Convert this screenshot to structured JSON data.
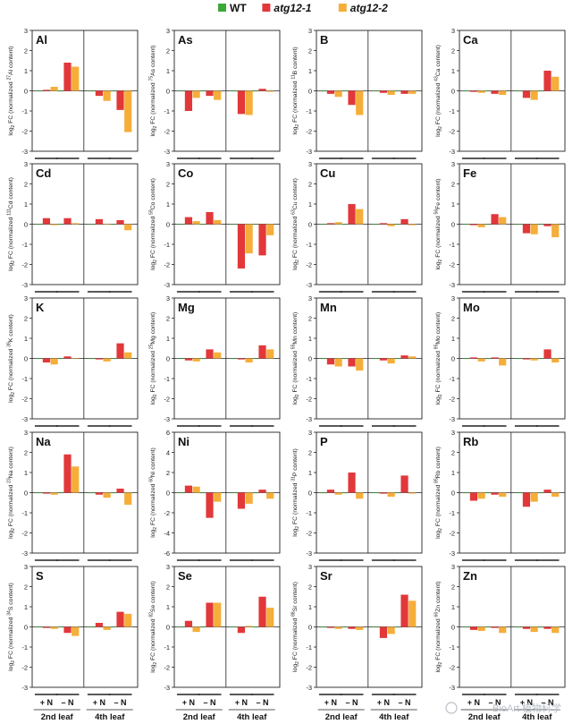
{
  "legend": {
    "entries": [
      {
        "label": "WT",
        "color": "#3aa935",
        "italic": false
      },
      {
        "label": "atg12-1",
        "color": "#e2383a",
        "italic": true
      },
      {
        "label": "atg12-2",
        "color": "#f5ae3a",
        "italic": true
      }
    ]
  },
  "axis": {
    "ylabel_prefix": "log",
    "ylabel_sub": "2",
    "ylabel_fc": " FC (normalized "
  },
  "groups": {
    "treatments": [
      "+ N",
      "– N"
    ],
    "leaves": [
      "2nd leaf",
      "4th leaf"
    ]
  },
  "watermark": "BioArt 植物科学",
  "chart_data": [
    {
      "type": "bar",
      "title": "Al",
      "isotope": "27",
      "isotope_el": "Al",
      "ylim": [
        -3,
        3
      ],
      "ticks": [
        -3,
        -2,
        -1,
        0,
        1,
        2,
        3
      ],
      "categories": [
        "2nd +N",
        "2nd –N",
        "4th +N",
        "4th –N"
      ],
      "series": [
        {
          "name": "WT",
          "values": [
            0,
            0,
            0,
            0
          ]
        },
        {
          "name": "atg12-1",
          "values": [
            0.05,
            1.4,
            -0.25,
            -0.95
          ]
        },
        {
          "name": "atg12-2",
          "values": [
            0.2,
            1.2,
            -0.5,
            -2.05
          ]
        }
      ]
    },
    {
      "type": "bar",
      "title": "As",
      "isotope": "75",
      "isotope_el": "As",
      "ylim": [
        -3,
        3
      ],
      "ticks": [
        -3,
        -2,
        -1,
        0,
        1,
        2,
        3
      ],
      "categories": [
        "2nd +N",
        "2nd –N",
        "4th +N",
        "4th –N"
      ],
      "series": [
        {
          "name": "WT",
          "values": [
            0,
            0,
            0,
            0
          ]
        },
        {
          "name": "atg12-1",
          "values": [
            -1.0,
            -0.25,
            -1.15,
            0.1
          ]
        },
        {
          "name": "atg12-2",
          "values": [
            -0.35,
            -0.45,
            -1.2,
            -0.05
          ]
        }
      ]
    },
    {
      "type": "bar",
      "title": "B",
      "isotope": "11",
      "isotope_el": "B",
      "ylim": [
        -3,
        3
      ],
      "ticks": [
        -3,
        -2,
        -1,
        0,
        1,
        2,
        3
      ],
      "categories": [
        "2nd +N",
        "2nd –N",
        "4th +N",
        "4th –N"
      ],
      "series": [
        {
          "name": "WT",
          "values": [
            0,
            0,
            0,
            0
          ]
        },
        {
          "name": "atg12-1",
          "values": [
            -0.15,
            -0.7,
            -0.1,
            -0.15
          ]
        },
        {
          "name": "atg12-2",
          "values": [
            -0.3,
            -1.2,
            -0.2,
            -0.15
          ]
        }
      ]
    },
    {
      "type": "bar",
      "title": "Ca",
      "isotope": "43",
      "isotope_el": "Ca",
      "ylim": [
        -3,
        3
      ],
      "ticks": [
        -3,
        -2,
        -1,
        0,
        1,
        2,
        3
      ],
      "categories": [
        "2nd +N",
        "2nd –N",
        "4th +N",
        "4th –N"
      ],
      "series": [
        {
          "name": "WT",
          "values": [
            0,
            0,
            0,
            0
          ]
        },
        {
          "name": "atg12-1",
          "values": [
            -0.05,
            -0.15,
            -0.35,
            1.0
          ]
        },
        {
          "name": "atg12-2",
          "values": [
            -0.1,
            -0.2,
            -0.45,
            0.7
          ]
        }
      ]
    },
    {
      "type": "bar",
      "title": "Cd",
      "isotope": "111",
      "isotope_el": "Cd",
      "ylim": [
        -3,
        3
      ],
      "ticks": [
        -3,
        -2,
        -1,
        0,
        1,
        2,
        3
      ],
      "categories": [
        "2nd +N",
        "2nd –N",
        "4th +N",
        "4th –N"
      ],
      "series": [
        {
          "name": "WT",
          "values": [
            0,
            0,
            0,
            0
          ]
        },
        {
          "name": "atg12-1",
          "values": [
            0.3,
            0.3,
            0.25,
            0.2
          ]
        },
        {
          "name": "atg12-2",
          "values": [
            -0.05,
            0.05,
            0.0,
            -0.3
          ]
        }
      ]
    },
    {
      "type": "bar",
      "title": "Co",
      "isotope": "59",
      "isotope_el": "Co",
      "ylim": [
        -3,
        3
      ],
      "ticks": [
        -3,
        -2,
        -1,
        0,
        1,
        2,
        3
      ],
      "categories": [
        "2nd +N",
        "2nd –N",
        "4th +N",
        "4th –N"
      ],
      "series": [
        {
          "name": "WT",
          "values": [
            0,
            0,
            0,
            0
          ]
        },
        {
          "name": "atg12-1",
          "values": [
            0.35,
            0.6,
            -2.2,
            -1.55
          ]
        },
        {
          "name": "atg12-2",
          "values": [
            0.15,
            0.2,
            -1.45,
            -0.55
          ]
        }
      ]
    },
    {
      "type": "bar",
      "title": "Cu",
      "isotope": "63",
      "isotope_el": "Cu",
      "ylim": [
        -3,
        3
      ],
      "ticks": [
        -3,
        -2,
        -1,
        0,
        1,
        2,
        3
      ],
      "categories": [
        "2nd +N",
        "2nd –N",
        "4th +N",
        "4th –N"
      ],
      "series": [
        {
          "name": "WT",
          "values": [
            0,
            0,
            0,
            0
          ]
        },
        {
          "name": "atg12-1",
          "values": [
            0.05,
            1.0,
            0.05,
            0.25
          ]
        },
        {
          "name": "atg12-2",
          "values": [
            0.1,
            0.75,
            -0.1,
            -0.05
          ]
        }
      ]
    },
    {
      "type": "bar",
      "title": "Fe",
      "isotope": "56",
      "isotope_el": "Fe",
      "ylim": [
        -3,
        3
      ],
      "ticks": [
        -3,
        -2,
        -1,
        0,
        1,
        2,
        3
      ],
      "categories": [
        "2nd +N",
        "2nd –N",
        "4th +N",
        "4th –N"
      ],
      "series": [
        {
          "name": "WT",
          "values": [
            0,
            0,
            0,
            0
          ]
        },
        {
          "name": "atg12-1",
          "values": [
            -0.05,
            0.5,
            -0.45,
            -0.1
          ]
        },
        {
          "name": "atg12-2",
          "values": [
            -0.15,
            0.35,
            -0.5,
            -0.65
          ]
        }
      ]
    },
    {
      "type": "bar",
      "title": "K",
      "isotope": "39",
      "isotope_el": "K",
      "ylim": [
        -3,
        3
      ],
      "ticks": [
        -3,
        -2,
        -1,
        0,
        1,
        2,
        3
      ],
      "categories": [
        "2nd +N",
        "2nd –N",
        "4th +N",
        "4th –N"
      ],
      "series": [
        {
          "name": "WT",
          "values": [
            0,
            0,
            0,
            0
          ]
        },
        {
          "name": "atg12-1",
          "values": [
            -0.2,
            0.1,
            -0.05,
            0.75
          ]
        },
        {
          "name": "atg12-2",
          "values": [
            -0.3,
            0.0,
            -0.15,
            0.3
          ]
        }
      ]
    },
    {
      "type": "bar",
      "title": "Mg",
      "isotope": "25",
      "isotope_el": "Mg",
      "ylim": [
        -3,
        3
      ],
      "ticks": [
        -3,
        -2,
        -1,
        0,
        1,
        2,
        3
      ],
      "categories": [
        "2nd +N",
        "2nd –N",
        "4th +N",
        "4th –N"
      ],
      "series": [
        {
          "name": "WT",
          "values": [
            0,
            0,
            0,
            0
          ]
        },
        {
          "name": "atg12-1",
          "values": [
            -0.1,
            0.45,
            -0.05,
            0.65
          ]
        },
        {
          "name": "atg12-2",
          "values": [
            -0.15,
            0.3,
            -0.2,
            0.45
          ]
        }
      ]
    },
    {
      "type": "bar",
      "title": "Mn",
      "isotope": "55",
      "isotope_el": "Mn",
      "ylim": [
        -3,
        3
      ],
      "ticks": [
        -3,
        -2,
        -1,
        0,
        1,
        2,
        3
      ],
      "categories": [
        "2nd +N",
        "2nd –N",
        "4th +N",
        "4th –N"
      ],
      "series": [
        {
          "name": "WT",
          "values": [
            0,
            0,
            0,
            0
          ]
        },
        {
          "name": "atg12-1",
          "values": [
            -0.3,
            -0.4,
            -0.1,
            0.15
          ]
        },
        {
          "name": "atg12-2",
          "values": [
            -0.4,
            -0.6,
            -0.25,
            0.1
          ]
        }
      ]
    },
    {
      "type": "bar",
      "title": "Mo",
      "isotope": "95",
      "isotope_el": "Mo",
      "ylim": [
        -3,
        3
      ],
      "ticks": [
        -3,
        -2,
        -1,
        0,
        1,
        2,
        3
      ],
      "categories": [
        "2nd +N",
        "2nd –N",
        "4th +N",
        "4th –N"
      ],
      "series": [
        {
          "name": "WT",
          "values": [
            0,
            0,
            0,
            0
          ]
        },
        {
          "name": "atg12-1",
          "values": [
            0.05,
            0.05,
            -0.05,
            0.45
          ]
        },
        {
          "name": "atg12-2",
          "values": [
            -0.15,
            -0.35,
            -0.1,
            -0.2
          ]
        }
      ]
    },
    {
      "type": "bar",
      "title": "Na",
      "isotope": "23",
      "isotope_el": "Na",
      "ylim": [
        -3,
        3
      ],
      "ticks": [
        -3,
        -2,
        -1,
        0,
        1,
        2,
        3
      ],
      "categories": [
        "2nd +N",
        "2nd –N",
        "4th +N",
        "4th –N"
      ],
      "series": [
        {
          "name": "WT",
          "values": [
            0,
            0,
            0,
            0
          ]
        },
        {
          "name": "atg12-1",
          "values": [
            -0.05,
            1.9,
            -0.1,
            0.2
          ]
        },
        {
          "name": "atg12-2",
          "values": [
            -0.1,
            1.3,
            -0.25,
            -0.6
          ]
        }
      ]
    },
    {
      "type": "bar",
      "title": "Ni",
      "isotope": "60",
      "isotope_el": "Ni",
      "ylim": [
        -6,
        6
      ],
      "ticks": [
        -6,
        -4,
        -2,
        0,
        2,
        4,
        6
      ],
      "categories": [
        "2nd +N",
        "2nd –N",
        "4th +N",
        "4th –N"
      ],
      "series": [
        {
          "name": "WT",
          "values": [
            0,
            0,
            0,
            0
          ]
        },
        {
          "name": "atg12-1",
          "values": [
            0.7,
            -2.5,
            -1.6,
            0.3
          ]
        },
        {
          "name": "atg12-2",
          "values": [
            0.6,
            -0.9,
            -1.1,
            -0.6
          ]
        }
      ]
    },
    {
      "type": "bar",
      "title": "P",
      "isotope": "31",
      "isotope_el": "P",
      "ylim": [
        -3,
        3
      ],
      "ticks": [
        -3,
        -2,
        -1,
        0,
        1,
        2,
        3
      ],
      "categories": [
        "2nd +N",
        "2nd –N",
        "4th +N",
        "4th –N"
      ],
      "series": [
        {
          "name": "WT",
          "values": [
            0,
            0,
            0,
            0
          ]
        },
        {
          "name": "atg12-1",
          "values": [
            0.15,
            1.0,
            -0.05,
            0.85
          ]
        },
        {
          "name": "atg12-2",
          "values": [
            -0.1,
            -0.3,
            -0.2,
            -0.05
          ]
        }
      ]
    },
    {
      "type": "bar",
      "title": "Rb",
      "isotope": "85",
      "isotope_el": "Rb",
      "ylim": [
        -3,
        3
      ],
      "ticks": [
        -3,
        -2,
        -1,
        0,
        1,
        2,
        3
      ],
      "categories": [
        "2nd +N",
        "2nd –N",
        "4th +N",
        "4th –N"
      ],
      "series": [
        {
          "name": "WT",
          "values": [
            0,
            0,
            0,
            0
          ]
        },
        {
          "name": "atg12-1",
          "values": [
            -0.4,
            -0.1,
            -0.7,
            0.15
          ]
        },
        {
          "name": "atg12-2",
          "values": [
            -0.3,
            -0.2,
            -0.45,
            -0.2
          ]
        }
      ]
    },
    {
      "type": "bar",
      "title": "S",
      "isotope": "34",
      "isotope_el": "S",
      "ylim": [
        -3,
        3
      ],
      "ticks": [
        -3,
        -2,
        -1,
        0,
        1,
        2,
        3
      ],
      "categories": [
        "2nd +N",
        "2nd –N",
        "4th +N",
        "4th –N"
      ],
      "series": [
        {
          "name": "WT",
          "values": [
            0,
            0,
            0,
            0
          ]
        },
        {
          "name": "atg12-1",
          "values": [
            -0.05,
            -0.3,
            0.2,
            0.75
          ]
        },
        {
          "name": "atg12-2",
          "values": [
            -0.1,
            -0.45,
            -0.15,
            0.65
          ]
        }
      ]
    },
    {
      "type": "bar",
      "title": "Se",
      "isotope": "82",
      "isotope_el": "Se",
      "ylim": [
        -3,
        3
      ],
      "ticks": [
        -3,
        -2,
        -1,
        0,
        1,
        2,
        3
      ],
      "categories": [
        "2nd +N",
        "2nd –N",
        "4th +N",
        "4th –N"
      ],
      "series": [
        {
          "name": "WT",
          "values": [
            0,
            0,
            0,
            0
          ]
        },
        {
          "name": "atg12-1",
          "values": [
            0.3,
            1.2,
            -0.3,
            1.5
          ]
        },
        {
          "name": "atg12-2",
          "values": [
            -0.25,
            1.2,
            0.05,
            0.95
          ]
        }
      ]
    },
    {
      "type": "bar",
      "title": "Sr",
      "isotope": "88",
      "isotope_el": "Sr",
      "ylim": [
        -3,
        3
      ],
      "ticks": [
        -3,
        -2,
        -1,
        0,
        1,
        2,
        3
      ],
      "categories": [
        "2nd +N",
        "2nd –N",
        "4th +N",
        "4th –N"
      ],
      "series": [
        {
          "name": "WT",
          "values": [
            0,
            0,
            0,
            0
          ]
        },
        {
          "name": "atg12-1",
          "values": [
            -0.05,
            -0.1,
            -0.55,
            1.6
          ]
        },
        {
          "name": "atg12-2",
          "values": [
            -0.1,
            -0.15,
            -0.35,
            1.3
          ]
        }
      ]
    },
    {
      "type": "bar",
      "title": "Zn",
      "isotope": "66",
      "isotope_el": "Zn",
      "ylim": [
        -3,
        3
      ],
      "ticks": [
        -3,
        -2,
        -1,
        0,
        1,
        2,
        3
      ],
      "categories": [
        "2nd +N",
        "2nd –N",
        "4th +N",
        "4th –N"
      ],
      "series": [
        {
          "name": "WT",
          "values": [
            0,
            0,
            0,
            0
          ]
        },
        {
          "name": "atg12-1",
          "values": [
            -0.15,
            -0.05,
            -0.1,
            -0.1
          ]
        },
        {
          "name": "atg12-2",
          "values": [
            -0.2,
            -0.3,
            -0.25,
            -0.3
          ]
        }
      ]
    }
  ]
}
